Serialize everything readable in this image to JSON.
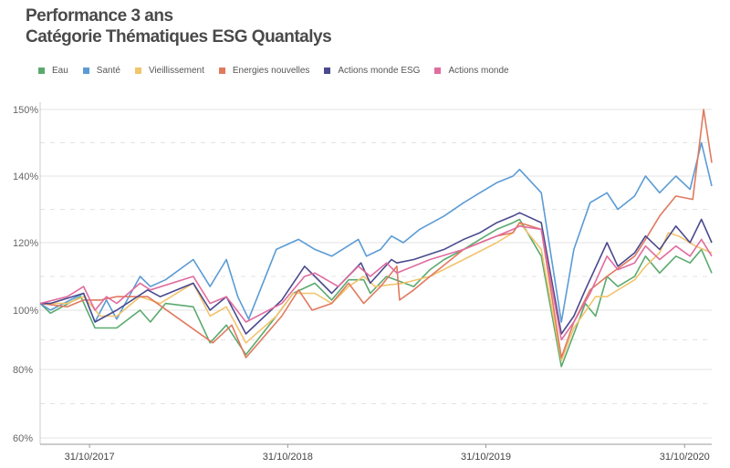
{
  "title_line1": "Performance 3 ans",
  "title_line2": "Catégorie Thématiques ESG Quantalys",
  "chart_data": {
    "type": "line",
    "title": "Performance 3 ans — Catégorie Thématiques ESG Quantalys",
    "ylim": [
      60,
      150
    ],
    "y_ticks": [
      "60%",
      "80%",
      "100%",
      "120%",
      "140%",
      "150%"
    ],
    "y_tick_values": [
      60,
      80,
      100,
      120,
      140,
      150
    ],
    "x_ticks": [
      "31/10/2017",
      "31/10/2018",
      "31/10/2019",
      "31/10/2020"
    ],
    "x_range": [
      "2017-08-01",
      "2020-12-20"
    ],
    "legend_position": "top-left",
    "grid": "horizontal dashed",
    "series": [
      {
        "name": "Eau",
        "color": "#5aaa6e",
        "points": [
          [
            "2017-08-01",
            102
          ],
          [
            "2017-08-20",
            99
          ],
          [
            "2017-10-15",
            104
          ],
          [
            "2017-11-10",
            94
          ],
          [
            "2017-12-20",
            94
          ],
          [
            "2018-02-01",
            100
          ],
          [
            "2018-02-20",
            96
          ],
          [
            "2018-03-20",
            102
          ],
          [
            "2018-05-10",
            101
          ],
          [
            "2018-06-10",
            89
          ],
          [
            "2018-07-10",
            95
          ],
          [
            "2018-08-15",
            85
          ],
          [
            "2018-10-10",
            98
          ],
          [
            "2018-11-10",
            105
          ],
          [
            "2018-12-20",
            108
          ],
          [
            "2019-01-20",
            103
          ],
          [
            "2019-02-20",
            109
          ],
          [
            "2019-03-20",
            109
          ],
          [
            "2019-04-01",
            105
          ],
          [
            "2019-05-01",
            110
          ],
          [
            "2019-06-20",
            107
          ],
          [
            "2019-07-20",
            112
          ],
          [
            "2019-08-15",
            115
          ],
          [
            "2019-09-20",
            118
          ],
          [
            "2019-10-20",
            121
          ],
          [
            "2019-11-20",
            124
          ],
          [
            "2019-12-20",
            126
          ],
          [
            "2020-01-01",
            127
          ],
          [
            "2020-02-10",
            116
          ],
          [
            "2020-03-18",
            81
          ],
          [
            "2020-04-10",
            92
          ],
          [
            "2020-05-01",
            102
          ],
          [
            "2020-05-20",
            98
          ],
          [
            "2020-06-10",
            110
          ],
          [
            "2020-06-30",
            107
          ],
          [
            "2020-07-31",
            110
          ],
          [
            "2020-08-20",
            116
          ],
          [
            "2020-09-15",
            111
          ],
          [
            "2020-10-15",
            116
          ],
          [
            "2020-11-10",
            114
          ],
          [
            "2020-12-01",
            118
          ],
          [
            "2020-12-20",
            111
          ]
        ]
      },
      {
        "name": "Santé",
        "color": "#5b9bd5",
        "points": [
          [
            "2017-08-01",
            102
          ],
          [
            "2017-08-20",
            100
          ],
          [
            "2017-10-20",
            105
          ],
          [
            "2017-11-10",
            96
          ],
          [
            "2017-12-01",
            103
          ],
          [
            "2017-12-20",
            97
          ],
          [
            "2018-02-01",
            110
          ],
          [
            "2018-02-20",
            107
          ],
          [
            "2018-03-20",
            109
          ],
          [
            "2018-05-10",
            115
          ],
          [
            "2018-06-10",
            107
          ],
          [
            "2018-07-10",
            115
          ],
          [
            "2018-07-31",
            104
          ],
          [
            "2018-08-20",
            97
          ],
          [
            "2018-10-10",
            118
          ],
          [
            "2018-11-20",
            121
          ],
          [
            "2018-12-20",
            118
          ],
          [
            "2019-01-20",
            116
          ],
          [
            "2019-03-10",
            121
          ],
          [
            "2019-03-25",
            116
          ],
          [
            "2019-04-20",
            118
          ],
          [
            "2019-05-10",
            122
          ],
          [
            "2019-06-01",
            120
          ],
          [
            "2019-07-01",
            124
          ],
          [
            "2019-08-15",
            128
          ],
          [
            "2019-09-20",
            132
          ],
          [
            "2019-10-20",
            135
          ],
          [
            "2019-11-20",
            138
          ],
          [
            "2019-12-20",
            140
          ],
          [
            "2020-01-01",
            141
          ],
          [
            "2020-02-10",
            135
          ],
          [
            "2020-03-18",
            96
          ],
          [
            "2020-04-10",
            118
          ],
          [
            "2020-05-10",
            132
          ],
          [
            "2020-06-10",
            135
          ],
          [
            "2020-06-30",
            130
          ],
          [
            "2020-07-31",
            134
          ],
          [
            "2020-08-20",
            140
          ],
          [
            "2020-09-15",
            135
          ],
          [
            "2020-10-15",
            140
          ],
          [
            "2020-11-10",
            136
          ],
          [
            "2020-12-01",
            145
          ],
          [
            "2020-12-20",
            137
          ]
        ]
      },
      {
        "name": "Vieillissement",
        "color": "#f2c46d",
        "points": [
          [
            "2017-08-01",
            102
          ],
          [
            "2017-09-20",
            102
          ],
          [
            "2017-10-20",
            104
          ],
          [
            "2017-11-20",
            98
          ],
          [
            "2017-12-20",
            98
          ],
          [
            "2018-02-01",
            104
          ],
          [
            "2018-03-10",
            102
          ],
          [
            "2018-05-10",
            108
          ],
          [
            "2018-06-10",
            98
          ],
          [
            "2018-07-10",
            101
          ],
          [
            "2018-08-15",
            89
          ],
          [
            "2018-10-10",
            98
          ],
          [
            "2018-11-10",
            105
          ],
          [
            "2018-12-20",
            105
          ],
          [
            "2019-01-20",
            102
          ],
          [
            "2019-02-20",
            107
          ],
          [
            "2019-03-20",
            110
          ],
          [
            "2019-04-10",
            107
          ],
          [
            "2019-06-01",
            108
          ],
          [
            "2019-07-20",
            110
          ],
          [
            "2019-09-20",
            115
          ],
          [
            "2019-11-20",
            120
          ],
          [
            "2019-12-20",
            123
          ],
          [
            "2020-01-01",
            126
          ],
          [
            "2020-02-10",
            118
          ],
          [
            "2020-03-18",
            83
          ],
          [
            "2020-04-10",
            94
          ],
          [
            "2020-05-20",
            104
          ],
          [
            "2020-06-10",
            104
          ],
          [
            "2020-07-31",
            109
          ],
          [
            "2020-08-20",
            113
          ],
          [
            "2020-09-15",
            117
          ],
          [
            "2020-10-01",
            123
          ],
          [
            "2020-10-20",
            122
          ],
          [
            "2020-11-20",
            119
          ],
          [
            "2020-12-20",
            117
          ]
        ]
      },
      {
        "name": "Energies nouvelles",
        "color": "#e07a5f",
        "points": [
          [
            "2017-08-01",
            102
          ],
          [
            "2017-09-20",
            101
          ],
          [
            "2017-10-20",
            103
          ],
          [
            "2017-11-20",
            103
          ],
          [
            "2017-12-20",
            104
          ],
          [
            "2018-02-15",
            104
          ],
          [
            "2018-06-15",
            89
          ],
          [
            "2018-07-20",
            95
          ],
          [
            "2018-08-15",
            84
          ],
          [
            "2018-10-20",
            98
          ],
          [
            "2018-11-20",
            106
          ],
          [
            "2018-12-15",
            100
          ],
          [
            "2019-01-20",
            102
          ],
          [
            "2019-02-20",
            108
          ],
          [
            "2019-03-20",
            102
          ],
          [
            "2019-04-20",
            107
          ],
          [
            "2019-05-20",
            113
          ],
          [
            "2019-05-25",
            103
          ],
          [
            "2019-06-20",
            106
          ],
          [
            "2019-07-20",
            110
          ],
          [
            "2019-08-20",
            114
          ],
          [
            "2019-09-20",
            118
          ],
          [
            "2019-10-20",
            120
          ],
          [
            "2019-11-20",
            122
          ],
          [
            "2019-12-20",
            123
          ],
          [
            "2020-01-01",
            126
          ],
          [
            "2020-02-10",
            124
          ],
          [
            "2020-03-18",
            84
          ],
          [
            "2020-04-10",
            96
          ],
          [
            "2020-05-10",
            106
          ],
          [
            "2020-06-10",
            110
          ],
          [
            "2020-07-31",
            116
          ],
          [
            "2020-08-20",
            121
          ],
          [
            "2020-09-15",
            128
          ],
          [
            "2020-10-15",
            134
          ],
          [
            "2020-11-15",
            133
          ],
          [
            "2020-12-05",
            150
          ],
          [
            "2020-12-20",
            142
          ]
        ]
      },
      {
        "name": "Actions monde ESG",
        "color": "#4a4a8e",
        "points": [
          [
            "2017-08-01",
            102
          ],
          [
            "2017-08-20",
            102
          ],
          [
            "2017-10-20",
            105
          ],
          [
            "2017-11-10",
            96
          ],
          [
            "2017-12-20",
            100
          ],
          [
            "2018-02-15",
            106
          ],
          [
            "2018-03-10",
            104
          ],
          [
            "2018-05-10",
            108
          ],
          [
            "2018-06-10",
            100
          ],
          [
            "2018-07-10",
            104
          ],
          [
            "2018-08-15",
            92
          ],
          [
            "2018-10-20",
            103
          ],
          [
            "2018-12-01",
            113
          ],
          [
            "2018-12-20",
            110
          ],
          [
            "2019-01-20",
            105
          ],
          [
            "2019-03-15",
            114
          ],
          [
            "2019-04-01",
            108
          ],
          [
            "2019-05-10",
            115
          ],
          [
            "2019-05-20",
            114
          ],
          [
            "2019-06-20",
            115
          ],
          [
            "2019-08-15",
            118
          ],
          [
            "2019-09-20",
            121
          ],
          [
            "2019-10-20",
            123
          ],
          [
            "2019-11-20",
            126
          ],
          [
            "2019-12-20",
            128
          ],
          [
            "2020-01-01",
            129
          ],
          [
            "2020-02-10",
            126
          ],
          [
            "2020-03-18",
            92
          ],
          [
            "2020-04-10",
            98
          ],
          [
            "2020-05-01",
            106
          ],
          [
            "2020-06-10",
            120
          ],
          [
            "2020-06-30",
            113
          ],
          [
            "2020-07-31",
            117
          ],
          [
            "2020-08-20",
            122
          ],
          [
            "2020-09-15",
            118
          ],
          [
            "2020-10-15",
            125
          ],
          [
            "2020-11-10",
            120
          ],
          [
            "2020-12-01",
            127
          ],
          [
            "2020-12-20",
            120
          ]
        ]
      },
      {
        "name": "Actions monde",
        "color": "#e06c9f",
        "points": [
          [
            "2017-08-01",
            102
          ],
          [
            "2017-09-20",
            104
          ],
          [
            "2017-10-20",
            107
          ],
          [
            "2017-11-10",
            100
          ],
          [
            "2017-12-01",
            104
          ],
          [
            "2017-12-20",
            102
          ],
          [
            "2018-02-01",
            108
          ],
          [
            "2018-02-20",
            106
          ],
          [
            "2018-05-10",
            110
          ],
          [
            "2018-06-10",
            102
          ],
          [
            "2018-07-10",
            104
          ],
          [
            "2018-08-15",
            96
          ],
          [
            "2018-10-20",
            102
          ],
          [
            "2018-12-01",
            110
          ],
          [
            "2018-12-20",
            111
          ],
          [
            "2019-02-01",
            107
          ],
          [
            "2019-03-10",
            113
          ],
          [
            "2019-04-01",
            110
          ],
          [
            "2019-05-01",
            114
          ],
          [
            "2019-05-20",
            111
          ],
          [
            "2019-07-20",
            115
          ],
          [
            "2019-09-20",
            118
          ],
          [
            "2019-11-20",
            122
          ],
          [
            "2019-12-20",
            124
          ],
          [
            "2020-01-01",
            125
          ],
          [
            "2020-02-10",
            124
          ],
          [
            "2020-03-18",
            90
          ],
          [
            "2020-04-10",
            96
          ],
          [
            "2020-05-10",
            105
          ],
          [
            "2020-06-10",
            116
          ],
          [
            "2020-06-30",
            112
          ],
          [
            "2020-07-31",
            114
          ],
          [
            "2020-08-20",
            119
          ],
          [
            "2020-09-15",
            115
          ],
          [
            "2020-10-15",
            119
          ],
          [
            "2020-11-10",
            116
          ],
          [
            "2020-12-01",
            121
          ],
          [
            "2020-12-20",
            116
          ]
        ]
      }
    ]
  }
}
